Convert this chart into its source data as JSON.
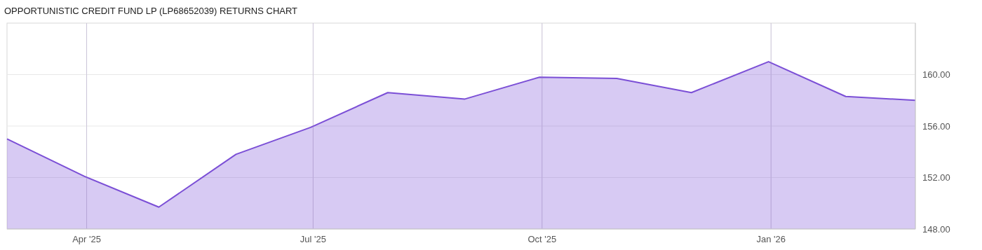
{
  "chart_data": {
    "type": "area",
    "title": "OPPORTUNISTIC CREDIT FUND LP (LP68652039) RETURNS CHART",
    "x": [
      "2025-02-28",
      "2025-03-31",
      "2025-04-30",
      "2025-05-31",
      "2025-06-30",
      "2025-07-31",
      "2025-08-31",
      "2025-09-30",
      "2025-10-31",
      "2025-11-30",
      "2025-12-31",
      "2026-01-31",
      "2026-02-28"
    ],
    "series": [
      {
        "color": "#7b4fd6",
        "values": [
          155.0,
          152.1,
          149.7,
          153.8,
          155.9,
          158.6,
          158.1,
          159.8,
          159.7,
          158.6,
          161.0,
          158.3,
          158.0
        ]
      }
    ],
    "xlim": [
      "2025-02-28",
      "2026-02-28"
    ],
    "xticks": [
      {
        "value": "2025-04-01",
        "label": "Apr '25"
      },
      {
        "value": "2025-07-01",
        "label": "Jul '25"
      },
      {
        "value": "2025-10-01",
        "label": "Oct '25"
      },
      {
        "value": "2026-01-01",
        "label": "Jan '26"
      }
    ],
    "ylim": [
      148,
      164
    ],
    "yticks": [
      {
        "value": 148,
        "label": "148.00"
      },
      {
        "value": 152,
        "label": "152.00"
      },
      {
        "value": 156,
        "label": "156.00"
      },
      {
        "value": 160,
        "label": "160.00"
      }
    ],
    "grid": true
  }
}
